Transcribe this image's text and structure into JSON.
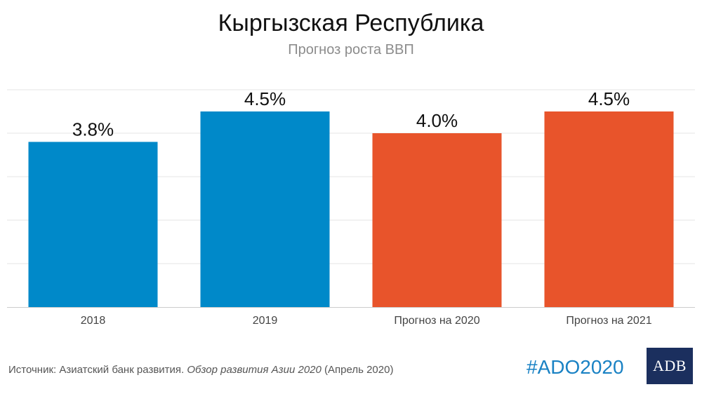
{
  "title": "Кыргызская Республика",
  "subtitle": "Прогноз роста ВВП",
  "source": {
    "prefix": "Источник: Азиатский банк развития. ",
    "italic": "Обзор развития Азии 2020",
    "suffix": " (Апрель 2020)"
  },
  "hashtag": "#ADO2020",
  "logo_text": "ADB",
  "colors": {
    "actual": "#0089c9",
    "forecast": "#e8542b",
    "grid": "#e6e6e6",
    "baseline": "#cccccc"
  },
  "chart_data": {
    "type": "bar",
    "categories": [
      "2018",
      "2019",
      "Прогноз на 2020",
      "Прогноз на 2021"
    ],
    "values": [
      3.8,
      4.5,
      4.0,
      4.5
    ],
    "value_labels": [
      "3.8%",
      "4.5%",
      "4.0%",
      "4.5%"
    ],
    "bar_kind": [
      "actual",
      "actual",
      "forecast",
      "forecast"
    ],
    "title": "Кыргызская Республика",
    "subtitle": "Прогноз роста ВВП",
    "ylim": [
      0,
      5
    ],
    "grid": true,
    "yticks_visible": false
  }
}
